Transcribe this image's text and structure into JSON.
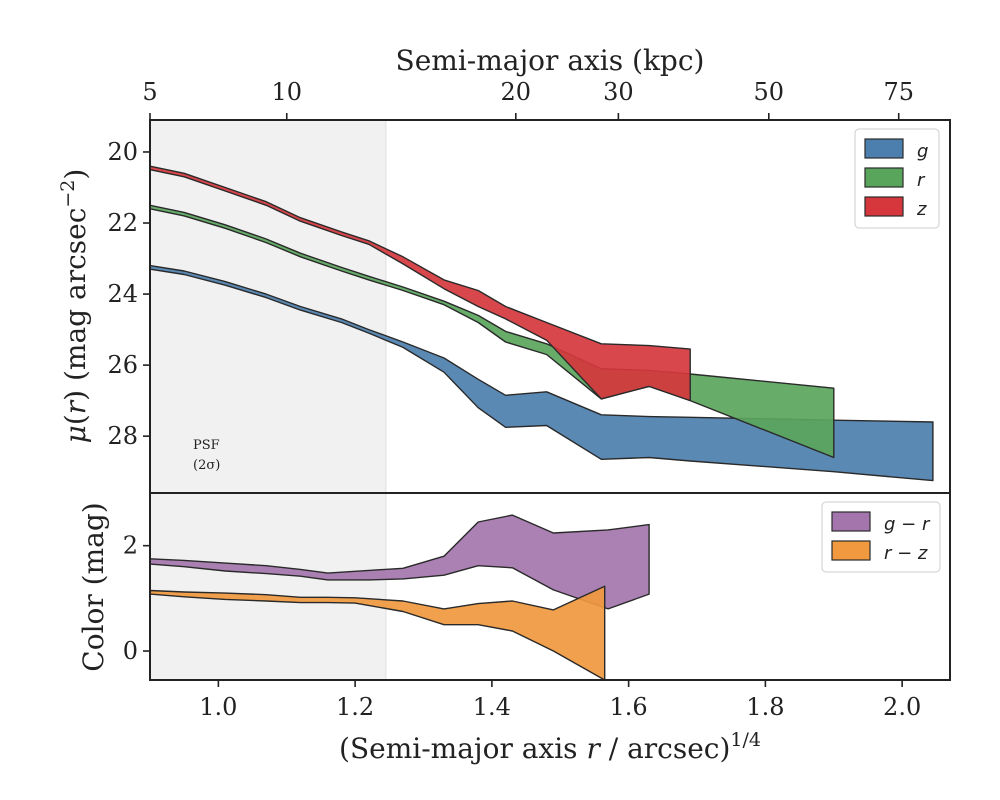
{
  "figure": {
    "top_axis_title": "Semi-major axis (kpc)",
    "top_ticks": [
      {
        "label": "5",
        "x": 0.9
      },
      {
        "label": "10",
        "x": 1.1
      },
      {
        "label": "20",
        "x": 1.435
      },
      {
        "label": "30",
        "x": 1.585
      },
      {
        "label": "50",
        "x": 1.805
      },
      {
        "label": "75",
        "x": 1.995
      }
    ],
    "bottom_axis_title": "(Semi-major axis r / arcsec)^1/4",
    "psf_label_line1": "PSF",
    "psf_label_line2": "(2σ)",
    "psf_shade_x": [
      0.9,
      1.245
    ]
  },
  "chart_data": [
    {
      "type": "area",
      "title": "",
      "xlabel": "(Semi-major axis r / arcsec)^1/4",
      "ylabel": "μ(r) (mag arcsec^-2)",
      "xlim": [
        0.9,
        2.07
      ],
      "ylim": [
        29.6,
        19.1
      ],
      "y_inverted": true,
      "yticks": [
        20,
        22,
        24,
        26,
        28
      ],
      "legend_position": "top-right",
      "series": [
        {
          "name": "g",
          "color": "#4c7fae",
          "x": [
            0.9,
            0.95,
            1.01,
            1.07,
            1.12,
            1.18,
            1.22,
            1.27,
            1.33,
            1.38,
            1.42,
            1.48,
            1.56,
            1.63,
            1.69,
            1.9,
            2.045
          ],
          "y_upper": [
            23.2,
            23.35,
            23.65,
            24.0,
            24.35,
            24.7,
            25.0,
            25.35,
            25.8,
            26.4,
            26.85,
            26.75,
            27.4,
            27.45,
            27.47,
            27.55,
            27.6
          ],
          "y_lower": [
            23.3,
            23.45,
            23.75,
            24.1,
            24.45,
            24.8,
            25.1,
            25.5,
            26.2,
            27.2,
            27.75,
            27.7,
            28.65,
            28.6,
            28.7,
            29.0,
            29.25
          ]
        },
        {
          "name": "r",
          "color": "#5aa55c",
          "x": [
            0.9,
            0.95,
            1.01,
            1.07,
            1.12,
            1.18,
            1.22,
            1.27,
            1.33,
            1.38,
            1.42,
            1.48,
            1.56,
            1.63,
            1.69,
            1.9
          ],
          "y_upper": [
            21.5,
            21.7,
            22.05,
            22.45,
            22.85,
            23.25,
            23.5,
            23.8,
            24.2,
            24.6,
            25.05,
            25.4,
            26.1,
            26.15,
            26.25,
            26.65
          ],
          "y_lower": [
            21.6,
            21.8,
            22.15,
            22.55,
            22.95,
            23.35,
            23.6,
            23.9,
            24.3,
            24.8,
            25.35,
            25.7,
            26.95,
            26.6,
            27.0,
            28.6
          ]
        },
        {
          "name": "z",
          "color": "#d5373d",
          "x": [
            0.9,
            0.95,
            1.01,
            1.07,
            1.12,
            1.18,
            1.22,
            1.27,
            1.33,
            1.38,
            1.42,
            1.48,
            1.56,
            1.63,
            1.69
          ],
          "y_upper": [
            20.4,
            20.6,
            21.0,
            21.4,
            21.85,
            22.25,
            22.5,
            22.95,
            23.6,
            23.9,
            24.35,
            24.8,
            25.4,
            25.45,
            25.55
          ],
          "y_lower": [
            20.5,
            20.7,
            21.1,
            21.5,
            21.95,
            22.35,
            22.6,
            23.15,
            23.85,
            24.35,
            24.7,
            25.3,
            26.95,
            26.6,
            27.0
          ]
        }
      ]
    },
    {
      "type": "area",
      "title": "",
      "xlabel": "(Semi-major axis r / arcsec)^1/4",
      "ylabel": "Color (mag)",
      "xlim": [
        0.9,
        2.07
      ],
      "ylim": [
        -0.55,
        3.0
      ],
      "xticks": [
        1.0,
        1.2,
        1.4,
        1.6,
        1.8,
        2.0
      ],
      "yticks": [
        0,
        2
      ],
      "legend_position": "top-right",
      "series": [
        {
          "name": "g − r",
          "color": "#a475ac",
          "x": [
            0.9,
            0.95,
            1.01,
            1.07,
            1.12,
            1.16,
            1.22,
            1.27,
            1.33,
            1.38,
            1.43,
            1.49,
            1.57,
            1.63
          ],
          "y_upper": [
            1.75,
            1.72,
            1.67,
            1.62,
            1.55,
            1.48,
            1.53,
            1.57,
            1.8,
            2.45,
            2.58,
            2.24,
            2.3,
            2.4
          ],
          "y_lower": [
            1.65,
            1.6,
            1.52,
            1.47,
            1.42,
            1.35,
            1.35,
            1.37,
            1.44,
            1.62,
            1.58,
            1.16,
            0.8,
            1.08
          ]
        },
        {
          "name": "r − z",
          "color": "#f0993e",
          "x": [
            0.9,
            0.95,
            1.01,
            1.07,
            1.12,
            1.16,
            1.2,
            1.27,
            1.33,
            1.38,
            1.43,
            1.49,
            1.565
          ],
          "y_upper": [
            1.15,
            1.12,
            1.1,
            1.07,
            1.02,
            1.02,
            1.01,
            0.95,
            0.8,
            0.9,
            0.95,
            0.78,
            1.23
          ],
          "y_lower": [
            1.08,
            1.03,
            0.98,
            0.95,
            0.92,
            0.92,
            0.91,
            0.75,
            0.5,
            0.5,
            0.38,
            0.0,
            -0.55
          ]
        }
      ]
    }
  ]
}
